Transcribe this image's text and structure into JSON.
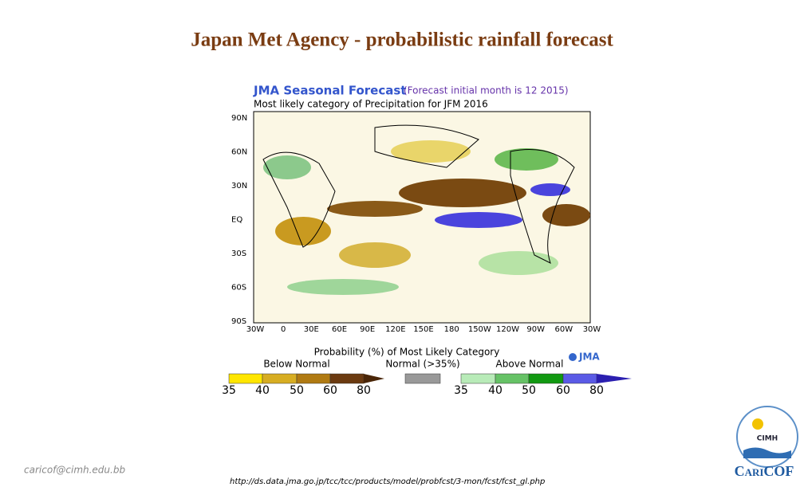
{
  "title": "Japan Met Agency - probabilistic rainfall forecast",
  "map": {
    "header": "JMA Seasonal Forecast",
    "header_note": "(Forecast initial month is 12 2015)",
    "subtitle": "Most likely category of Precipitation for JFM 2016",
    "lat_labels": [
      "90N",
      "60N",
      "30N",
      "EQ",
      "30S",
      "60S",
      "90S"
    ],
    "lon_labels": [
      "30W",
      "0",
      "30E",
      "60E",
      "90E",
      "120E",
      "150E",
      "180",
      "150W",
      "120W",
      "90W",
      "60W",
      "30W"
    ]
  },
  "legend": {
    "title": "Probability (%) of Most Likely Category",
    "below": "Below Normal",
    "normal": "Normal (>35%)",
    "above": "Above Normal",
    "below_ticks": [
      "35",
      "40",
      "50",
      "60",
      "80"
    ],
    "above_ticks": [
      "35",
      "40",
      "50",
      "60",
      "80"
    ],
    "logo": "JMA"
  },
  "footer": {
    "email": "caricof@cimh.edu.bb",
    "url": "http://ds.data.jma.go.jp/tcc/tcc/products/model/probfcst/3-mon/fcst/fcst_gl.php"
  },
  "logo": {
    "name": "CIMH",
    "brand": "CariCOF"
  }
}
